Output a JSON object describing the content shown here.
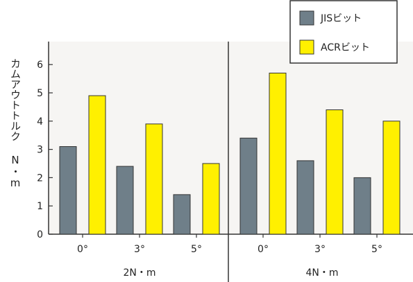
{
  "chart_data": {
    "type": "bar",
    "ylabel": "カムアウトトルク N・m",
    "ylim": [
      0,
      6.7
    ],
    "yticks": [
      "0",
      "1",
      "2",
      "3",
      "4",
      "5",
      "6"
    ],
    "categories": [
      "0°",
      "3°",
      "5°",
      "0°",
      "3°",
      "5°"
    ],
    "groups": [
      "2N・m",
      "4N・m"
    ],
    "series": [
      {
        "name": "JISビット",
        "color": "#6f7f89",
        "values": [
          3.1,
          2.4,
          1.4,
          3.4,
          2.6,
          2.0
        ]
      },
      {
        "name": "ACRビット",
        "color": "#fff000",
        "values": [
          4.9,
          3.9,
          2.5,
          5.7,
          4.4,
          4.0
        ]
      }
    ],
    "legend_position": "top-right",
    "grid": false
  }
}
